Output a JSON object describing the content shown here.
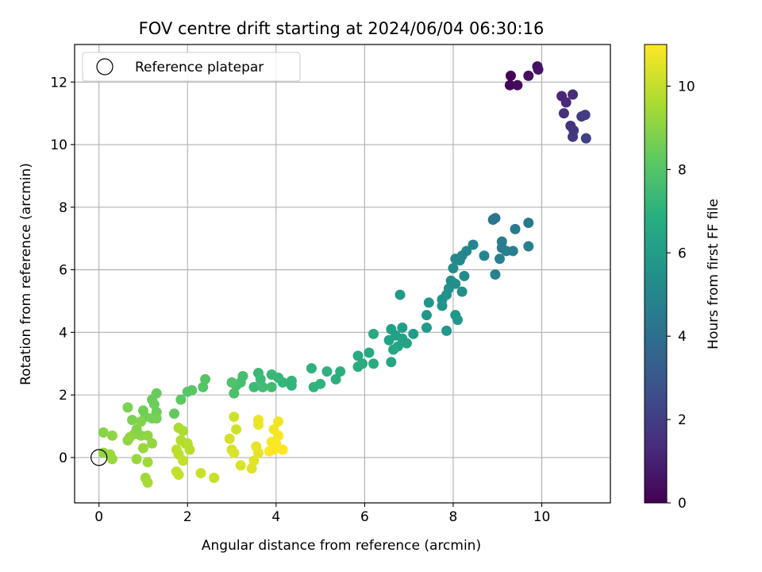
{
  "chart_data": {
    "type": "scatter",
    "title": "FOV centre drift starting at 2024/06/04 06:30:16",
    "xlabel": "Angular distance from reference (arcmin)",
    "ylabel": "Rotation from reference (arcmin)",
    "xlim": [
      -0.55,
      11.55
    ],
    "ylim": [
      -1.45,
      13.2
    ],
    "xticks": [
      0,
      2,
      4,
      6,
      8,
      10
    ],
    "yticks": [
      0,
      2,
      4,
      6,
      8,
      10,
      12
    ],
    "grid": true,
    "legend": {
      "position": "upper-left",
      "entries": [
        "Reference platepar"
      ]
    },
    "reference_point": {
      "x": 0,
      "y": 0,
      "marker": "open-circle"
    },
    "colorbar": {
      "label": "Hours from first FF file",
      "colormap": "viridis",
      "range": [
        0,
        11
      ],
      "ticks": [
        0,
        2,
        4,
        6,
        8,
        10
      ]
    },
    "series": [
      {
        "values": [
          {
            "x": 9.3,
            "y": 12.2,
            "t": 0.1
          },
          {
            "x": 9.28,
            "y": 11.9,
            "t": 0.2
          },
          {
            "x": 9.45,
            "y": 11.9,
            "t": 0.3
          },
          {
            "x": 9.7,
            "y": 12.2,
            "t": 0.4
          },
          {
            "x": 9.9,
            "y": 12.5,
            "t": 0.5
          },
          {
            "x": 9.92,
            "y": 12.4,
            "t": 0.6
          },
          {
            "x": 10.45,
            "y": 11.55,
            "t": 1.2
          },
          {
            "x": 10.55,
            "y": 11.35,
            "t": 1.3
          },
          {
            "x": 10.7,
            "y": 11.6,
            "t": 1.4
          },
          {
            "x": 10.5,
            "y": 11.0,
            "t": 1.5
          },
          {
            "x": 10.65,
            "y": 10.6,
            "t": 1.6
          },
          {
            "x": 10.72,
            "y": 10.45,
            "t": 1.7
          },
          {
            "x": 10.7,
            "y": 10.25,
            "t": 1.8
          },
          {
            "x": 10.9,
            "y": 10.9,
            "t": 1.9
          },
          {
            "x": 10.98,
            "y": 10.95,
            "t": 2.0
          },
          {
            "x": 11.0,
            "y": 10.2,
            "t": 2.1
          },
          {
            "x": 8.9,
            "y": 7.6,
            "t": 4.3
          },
          {
            "x": 8.95,
            "y": 7.65,
            "t": 4.3
          },
          {
            "x": 9.7,
            "y": 7.5,
            "t": 4.4
          },
          {
            "x": 9.4,
            "y": 7.3,
            "t": 4.5
          },
          {
            "x": 9.1,
            "y": 6.9,
            "t": 4.6
          },
          {
            "x": 9.1,
            "y": 6.7,
            "t": 4.6
          },
          {
            "x": 9.2,
            "y": 6.6,
            "t": 4.7
          },
          {
            "x": 9.35,
            "y": 6.6,
            "t": 4.7
          },
          {
            "x": 9.05,
            "y": 6.35,
            "t": 4.8
          },
          {
            "x": 9.7,
            "y": 6.75,
            "t": 4.8
          },
          {
            "x": 8.95,
            "y": 5.85,
            "t": 4.9
          },
          {
            "x": 8.7,
            "y": 6.45,
            "t": 5.0
          },
          {
            "x": 8.45,
            "y": 6.8,
            "t": 5.0
          },
          {
            "x": 8.3,
            "y": 6.6,
            "t": 5.1
          },
          {
            "x": 8.2,
            "y": 6.45,
            "t": 5.1
          },
          {
            "x": 8.05,
            "y": 6.35,
            "t": 5.2
          },
          {
            "x": 8.15,
            "y": 6.3,
            "t": 5.2
          },
          {
            "x": 8.0,
            "y": 6.05,
            "t": 5.3
          },
          {
            "x": 8.25,
            "y": 5.8,
            "t": 5.3
          },
          {
            "x": 7.95,
            "y": 5.65,
            "t": 5.4
          },
          {
            "x": 8.05,
            "y": 5.55,
            "t": 5.4
          },
          {
            "x": 7.9,
            "y": 5.4,
            "t": 5.5
          },
          {
            "x": 8.2,
            "y": 5.3,
            "t": 5.5
          },
          {
            "x": 7.85,
            "y": 5.2,
            "t": 5.6
          },
          {
            "x": 7.75,
            "y": 5.05,
            "t": 5.6
          },
          {
            "x": 7.75,
            "y": 4.85,
            "t": 5.7
          },
          {
            "x": 7.45,
            "y": 4.95,
            "t": 5.7
          },
          {
            "x": 7.4,
            "y": 4.55,
            "t": 5.8
          },
          {
            "x": 8.05,
            "y": 4.55,
            "t": 5.8
          },
          {
            "x": 8.1,
            "y": 4.4,
            "t": 5.9
          },
          {
            "x": 7.85,
            "y": 4.05,
            "t": 5.9
          },
          {
            "x": 7.4,
            "y": 4.15,
            "t": 6.0
          },
          {
            "x": 6.8,
            "y": 5.2,
            "t": 6.0
          },
          {
            "x": 7.1,
            "y": 3.95,
            "t": 6.1
          },
          {
            "x": 6.85,
            "y": 4.15,
            "t": 6.1
          },
          {
            "x": 6.6,
            "y": 4.1,
            "t": 6.2
          },
          {
            "x": 6.7,
            "y": 3.9,
            "t": 6.2
          },
          {
            "x": 6.55,
            "y": 3.75,
            "t": 6.3
          },
          {
            "x": 6.85,
            "y": 3.8,
            "t": 6.3
          },
          {
            "x": 6.95,
            "y": 3.65,
            "t": 6.4
          },
          {
            "x": 6.75,
            "y": 3.55,
            "t": 6.4
          },
          {
            "x": 6.65,
            "y": 3.45,
            "t": 6.5
          },
          {
            "x": 6.6,
            "y": 3.05,
            "t": 6.5
          },
          {
            "x": 6.2,
            "y": 3.95,
            "t": 6.6
          },
          {
            "x": 6.1,
            "y": 3.35,
            "t": 6.6
          },
          {
            "x": 5.85,
            "y": 3.25,
            "t": 6.7
          },
          {
            "x": 5.95,
            "y": 3.0,
            "t": 6.7
          },
          {
            "x": 6.2,
            "y": 3.0,
            "t": 6.8
          },
          {
            "x": 5.85,
            "y": 2.9,
            "t": 6.8
          },
          {
            "x": 5.45,
            "y": 2.75,
            "t": 6.9
          },
          {
            "x": 5.35,
            "y": 2.5,
            "t": 6.9
          },
          {
            "x": 5.15,
            "y": 2.75,
            "t": 7.0
          },
          {
            "x": 4.8,
            "y": 2.85,
            "t": 7.0
          },
          {
            "x": 5.0,
            "y": 2.35,
            "t": 7.1
          },
          {
            "x": 4.85,
            "y": 2.25,
            "t": 7.1
          },
          {
            "x": 4.35,
            "y": 2.45,
            "t": 7.2
          },
          {
            "x": 4.35,
            "y": 2.3,
            "t": 7.2
          },
          {
            "x": 4.15,
            "y": 2.4,
            "t": 7.3
          },
          {
            "x": 4.05,
            "y": 2.55,
            "t": 7.3
          },
          {
            "x": 3.9,
            "y": 2.65,
            "t": 7.4
          },
          {
            "x": 3.6,
            "y": 2.7,
            "t": 7.4
          },
          {
            "x": 3.65,
            "y": 2.5,
            "t": 7.5
          },
          {
            "x": 3.5,
            "y": 2.25,
            "t": 7.5
          },
          {
            "x": 3.7,
            "y": 2.25,
            "t": 7.6
          },
          {
            "x": 3.9,
            "y": 2.25,
            "t": 7.6
          },
          {
            "x": 3.25,
            "y": 2.6,
            "t": 7.7
          },
          {
            "x": 3.2,
            "y": 2.4,
            "t": 7.7
          },
          {
            "x": 3.1,
            "y": 2.3,
            "t": 7.8
          },
          {
            "x": 3.05,
            "y": 2.05,
            "t": 7.8
          },
          {
            "x": 3.0,
            "y": 2.4,
            "t": 7.9
          },
          {
            "x": 2.4,
            "y": 2.5,
            "t": 8.0
          },
          {
            "x": 2.35,
            "y": 2.25,
            "t": 8.0
          },
          {
            "x": 2.1,
            "y": 2.15,
            "t": 8.1
          },
          {
            "x": 2.0,
            "y": 2.1,
            "t": 8.1
          },
          {
            "x": 1.85,
            "y": 1.85,
            "t": 8.2
          },
          {
            "x": 1.7,
            "y": 1.4,
            "t": 8.3
          },
          {
            "x": 1.3,
            "y": 2.05,
            "t": 8.4
          },
          {
            "x": 1.2,
            "y": 1.85,
            "t": 8.4
          },
          {
            "x": 1.25,
            "y": 1.7,
            "t": 8.5
          },
          {
            "x": 1.3,
            "y": 1.45,
            "t": 8.5
          },
          {
            "x": 1.0,
            "y": 1.5,
            "t": 8.6
          },
          {
            "x": 1.05,
            "y": 1.3,
            "t": 8.6
          },
          {
            "x": 1.2,
            "y": 1.25,
            "t": 8.7
          },
          {
            "x": 1.3,
            "y": 1.25,
            "t": 8.7
          },
          {
            "x": 0.65,
            "y": 1.6,
            "t": 8.8
          },
          {
            "x": 0.75,
            "y": 1.2,
            "t": 8.8
          },
          {
            "x": 0.95,
            "y": 1.15,
            "t": 8.9
          },
          {
            "x": 0.85,
            "y": 0.9,
            "t": 8.9
          },
          {
            "x": 0.8,
            "y": 0.75,
            "t": 9.0
          },
          {
            "x": 0.95,
            "y": 0.7,
            "t": 9.0
          },
          {
            "x": 1.1,
            "y": 0.7,
            "t": 9.1
          },
          {
            "x": 0.65,
            "y": 0.55,
            "t": 9.1
          },
          {
            "x": 0.7,
            "y": 0.65,
            "t": 9.2
          },
          {
            "x": 1.2,
            "y": 0.45,
            "t": 9.2
          },
          {
            "x": 1.0,
            "y": 0.3,
            "t": 9.3
          },
          {
            "x": 0.85,
            "y": -0.05,
            "t": 9.3
          },
          {
            "x": 1.1,
            "y": -0.15,
            "t": 9.4
          },
          {
            "x": 1.05,
            "y": -0.65,
            "t": 9.4
          },
          {
            "x": 1.1,
            "y": -0.8,
            "t": 9.5
          },
          {
            "x": 0.1,
            "y": 0.8,
            "t": 9.0
          },
          {
            "x": 0.3,
            "y": 0.7,
            "t": 9.1
          },
          {
            "x": 0.1,
            "y": 0.15,
            "t": 9.2
          },
          {
            "x": 0.25,
            "y": 0.1,
            "t": 9.3
          },
          {
            "x": 0.3,
            "y": -0.05,
            "t": 9.3
          },
          {
            "x": 1.8,
            "y": 0.95,
            "t": 9.6
          },
          {
            "x": 1.9,
            "y": 0.85,
            "t": 9.6
          },
          {
            "x": 1.85,
            "y": 0.55,
            "t": 9.7
          },
          {
            "x": 1.95,
            "y": 0.45,
            "t": 9.7
          },
          {
            "x": 2.0,
            "y": 0.45,
            "t": 9.8
          },
          {
            "x": 2.05,
            "y": 0.25,
            "t": 9.8
          },
          {
            "x": 1.75,
            "y": 0.25,
            "t": 9.9
          },
          {
            "x": 1.8,
            "y": 0.1,
            "t": 9.9
          },
          {
            "x": 1.9,
            "y": -0.1,
            "t": 10.0
          },
          {
            "x": 1.75,
            "y": -0.45,
            "t": 10.0
          },
          {
            "x": 1.8,
            "y": -0.55,
            "t": 10.0
          },
          {
            "x": 2.3,
            "y": -0.5,
            "t": 10.1
          },
          {
            "x": 2.6,
            "y": -0.65,
            "t": 10.1
          },
          {
            "x": 3.05,
            "y": 1.3,
            "t": 10.2
          },
          {
            "x": 3.1,
            "y": 0.9,
            "t": 10.2
          },
          {
            "x": 2.95,
            "y": 0.6,
            "t": 10.3
          },
          {
            "x": 3.0,
            "y": 0.25,
            "t": 10.3
          },
          {
            "x": 3.05,
            "y": 0.15,
            "t": 10.4
          },
          {
            "x": 3.2,
            "y": -0.25,
            "t": 10.4
          },
          {
            "x": 3.45,
            "y": -0.35,
            "t": 10.5
          },
          {
            "x": 3.5,
            "y": -0.1,
            "t": 10.5
          },
          {
            "x": 3.55,
            "y": 0.35,
            "t": 10.6
          },
          {
            "x": 3.6,
            "y": 0.15,
            "t": 10.6
          },
          {
            "x": 3.6,
            "y": 1.2,
            "t": 10.7
          },
          {
            "x": 3.6,
            "y": 1.05,
            "t": 10.7
          },
          {
            "x": 3.95,
            "y": 0.9,
            "t": 10.8
          },
          {
            "x": 4.05,
            "y": 1.15,
            "t": 10.8
          },
          {
            "x": 4.05,
            "y": 0.7,
            "t": 10.9
          },
          {
            "x": 3.9,
            "y": 0.5,
            "t": 10.9
          },
          {
            "x": 4.0,
            "y": 0.45,
            "t": 10.95
          },
          {
            "x": 3.95,
            "y": 0.25,
            "t": 11.0
          },
          {
            "x": 4.15,
            "y": 0.25,
            "t": 11.0
          },
          {
            "x": 3.85,
            "y": 0.2,
            "t": 11.0
          }
        ]
      }
    ]
  }
}
